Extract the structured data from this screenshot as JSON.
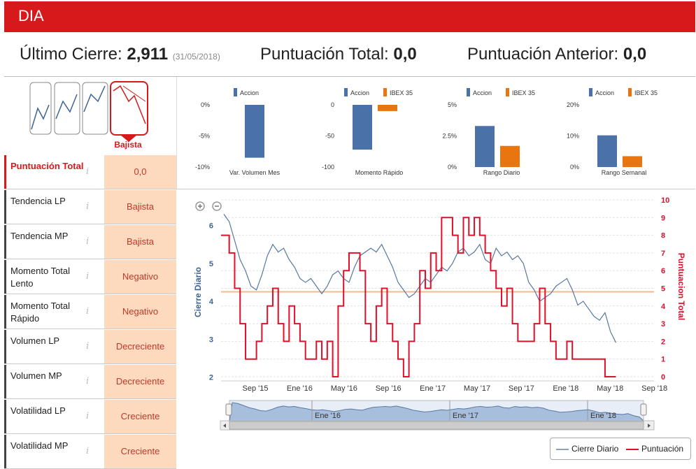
{
  "header": {
    "title": "DIA"
  },
  "summary": {
    "last_close_label": "Último Cierre:",
    "last_close_value": "2,911",
    "last_close_date": "(31/05/2018)",
    "total_score_label": "Puntuación Total:",
    "total_score_value": "0,0",
    "prev_score_label": "Puntuación Anterior:",
    "prev_score_value": "0,0"
  },
  "signal": {
    "label": "Bajista"
  },
  "indicators": [
    {
      "label": "Puntuación Total",
      "value": "0,0"
    },
    {
      "label": "Tendencia LP",
      "value": "Bajista"
    },
    {
      "label": "Tendencia MP",
      "value": "Bajista"
    },
    {
      "label": "Momento Total Lento",
      "value": "Negativo"
    },
    {
      "label": "Momento Total Rápido",
      "value": "Negativo"
    },
    {
      "label": "Volumen LP",
      "value": "Decreciente"
    },
    {
      "label": "Volumen MP",
      "value": "Decreciente"
    },
    {
      "label": "Volatilidad LP",
      "value": "Creciente"
    },
    {
      "label": "Volatilidad MP",
      "value": "Creciente"
    }
  ],
  "info_icon": "i",
  "colors": {
    "accent": "#d7191c",
    "accion": "#4a72a8",
    "ibex": "#e8750f",
    "score": "#e0102a",
    "price": "#5878a0"
  },
  "chart_data": [
    {
      "type": "bar",
      "title": "Var. Volumen Mes",
      "series": [
        {
          "name": "Accion",
          "values": [
            -8.5
          ]
        }
      ],
      "yticks": [
        "0%",
        "-5%",
        "-10%"
      ],
      "ylim": [
        -10,
        0
      ]
    },
    {
      "type": "bar",
      "title": "Momento Rápido",
      "series": [
        {
          "name": "Accion",
          "values": [
            -72
          ]
        },
        {
          "name": "IBEX 35",
          "values": [
            -10
          ]
        }
      ],
      "yticks": [
        "0",
        "-50",
        "-100"
      ],
      "ylim": [
        -100,
        0
      ]
    },
    {
      "type": "bar",
      "title": "Rango Diario",
      "series": [
        {
          "name": "Accion",
          "values": [
            3.3
          ]
        },
        {
          "name": "IBEX 35",
          "values": [
            1.7
          ]
        }
      ],
      "yticks": [
        "5%",
        "2.5%",
        "0%"
      ],
      "ylim": [
        0,
        5
      ]
    },
    {
      "type": "bar",
      "title": "Rango Semanal",
      "series": [
        {
          "name": "Accion",
          "values": [
            10.2
          ]
        },
        {
          "name": "IBEX 35",
          "values": [
            3.5
          ]
        }
      ],
      "yticks": [
        "20%",
        "10%",
        "0%"
      ],
      "ylim": [
        0,
        20
      ]
    },
    {
      "type": "line",
      "x_ticks": [
        "Sep '15",
        "Ene '16",
        "May '16",
        "Sep '16",
        "Ene '17",
        "May '17",
        "Sep '17",
        "Ene '18",
        "May '18",
        "Sep '18"
      ],
      "ylabel_left": "Cierre Diario",
      "ylabel_right": "Puntuacion Total",
      "left_ticks": [
        2,
        3,
        4,
        5,
        6
      ],
      "right_ticks": [
        0,
        1,
        2,
        3,
        4,
        5,
        6,
        7,
        8,
        9,
        10
      ],
      "ylim_left": [
        1.9,
        6.6
      ],
      "ylim_right": [
        0,
        10
      ],
      "xlim": [
        2015.52,
        2018.7
      ],
      "threshold": 4.8,
      "navigator_ticks": [
        "Ene '16",
        "Ene '17",
        "Ene '18"
      ],
      "series": [
        {
          "name": "Cierre Diario",
          "x": [
            2015.54,
            2015.58,
            2015.62,
            2015.66,
            2015.7,
            2015.74,
            2015.78,
            2015.82,
            2015.86,
            2015.9,
            2015.94,
            2015.98,
            2016.02,
            2016.06,
            2016.1,
            2016.14,
            2016.18,
            2016.22,
            2016.26,
            2016.3,
            2016.34,
            2016.38,
            2016.42,
            2016.46,
            2016.5,
            2016.54,
            2016.58,
            2016.62,
            2016.66,
            2016.7,
            2016.74,
            2016.78,
            2016.82,
            2016.86,
            2016.9,
            2016.94,
            2016.98,
            2017.02,
            2017.06,
            2017.1,
            2017.14,
            2017.18,
            2017.22,
            2017.26,
            2017.3,
            2017.34,
            2017.38,
            2017.42,
            2017.46,
            2017.5,
            2017.54,
            2017.58,
            2017.62,
            2017.66,
            2017.7,
            2017.74,
            2017.78,
            2017.82,
            2017.86,
            2017.9,
            2017.94,
            2017.98,
            2018.02,
            2018.06,
            2018.1,
            2018.14,
            2018.18,
            2018.22,
            2018.26,
            2018.3,
            2018.34,
            2018.38,
            2018.42
          ],
          "values": [
            6.3,
            6.1,
            5.6,
            5.1,
            4.8,
            4.4,
            4.3,
            4.7,
            5.2,
            5.5,
            5.3,
            5.4,
            5.1,
            4.9,
            4.6,
            4.5,
            4.6,
            4.4,
            4.2,
            4.4,
            4.7,
            4.8,
            4.6,
            4.5,
            4.9,
            5.2,
            5.3,
            5.4,
            5.3,
            5.5,
            5.2,
            4.9,
            4.5,
            4.3,
            4.1,
            4.2,
            4.4,
            4.6,
            4.5,
            4.7,
            4.9,
            4.8,
            5.0,
            5.3,
            5.4,
            5.2,
            5.3,
            5.5,
            5.1,
            5.0,
            5.4,
            5.2,
            5.3,
            5.1,
            5.2,
            5.0,
            4.5,
            4.3,
            4.0,
            4.1,
            4.2,
            4.4,
            4.5,
            4.6,
            4.3,
            3.9,
            4.0,
            3.8,
            3.6,
            3.5,
            3.7,
            3.2,
            2.91
          ]
        },
        {
          "name": "Puntuación",
          "x": [
            2015.52,
            2015.58,
            2015.62,
            2015.66,
            2015.7,
            2015.74,
            2015.78,
            2015.82,
            2015.86,
            2015.9,
            2015.94,
            2015.98,
            2016.02,
            2016.06,
            2016.1,
            2016.14,
            2016.18,
            2016.22,
            2016.26,
            2016.3,
            2016.34,
            2016.38,
            2016.42,
            2016.46,
            2016.5,
            2016.54,
            2016.58,
            2016.62,
            2016.66,
            2016.7,
            2016.74,
            2016.78,
            2016.82,
            2016.86,
            2016.9,
            2016.94,
            2016.98,
            2017.02,
            2017.06,
            2017.1,
            2017.14,
            2017.18,
            2017.22,
            2017.26,
            2017.3,
            2017.34,
            2017.38,
            2017.42,
            2017.46,
            2017.5,
            2017.54,
            2017.58,
            2017.62,
            2017.66,
            2017.7,
            2017.74,
            2017.78,
            2017.82,
            2017.86,
            2017.9,
            2017.94,
            2017.98,
            2018.02,
            2018.06,
            2018.1,
            2018.14,
            2018.18,
            2018.22,
            2018.26,
            2018.3,
            2018.34,
            2018.38,
            2018.42
          ],
          "values": [
            8,
            7,
            5,
            3,
            1,
            1,
            2,
            3,
            4,
            5,
            3,
            2,
            4,
            3,
            2,
            1,
            1,
            2,
            1,
            2,
            0,
            4,
            6,
            7,
            7,
            6,
            3,
            2,
            4,
            5,
            3,
            2,
            1,
            0,
            2,
            3,
            6,
            5,
            7,
            6,
            9,
            9,
            8,
            7,
            9,
            8,
            9,
            8,
            7,
            6,
            5,
            4,
            5,
            3,
            2,
            2,
            2,
            3,
            5,
            3,
            2,
            1,
            1,
            2,
            1,
            1,
            1,
            1,
            1,
            1,
            0,
            0,
            0
          ]
        }
      ]
    }
  ],
  "legend": {
    "price": "Cierre Diario",
    "score": "Puntuación"
  }
}
